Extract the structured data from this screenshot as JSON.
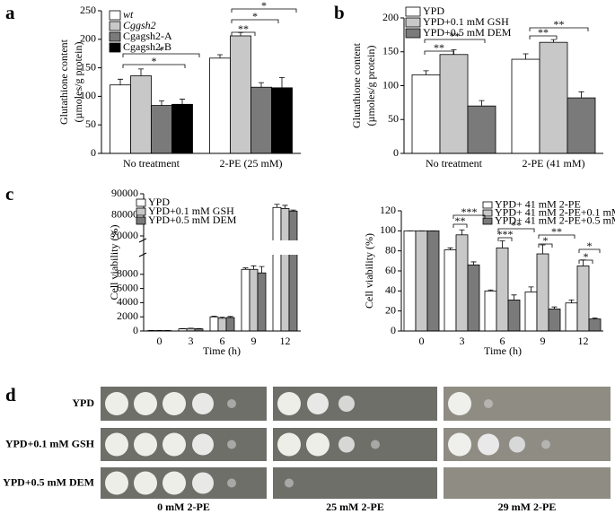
{
  "panels": [
    "a",
    "b",
    "c",
    "d"
  ],
  "chart_data": [
    {
      "type": "bar",
      "categories": [
        "No treatment",
        "2-PE (25 mM)"
      ],
      "series": [
        {
          "name": "wt",
          "color": "#ffffff",
          "values": [
            120,
            167
          ],
          "errors": [
            10,
            6
          ]
        },
        {
          "name": "Cggsh2",
          "color": "#c8c8c8",
          "values": [
            136,
            206
          ],
          "errors": [
            12,
            6
          ]
        },
        {
          "name": "Cgagsh2-A",
          "color": "#7a7a7a",
          "values": [
            84,
            116
          ],
          "errors": [
            8,
            8
          ]
        },
        {
          "name": "Cgagsh2-B",
          "color": "#000000",
          "values": [
            86,
            115
          ],
          "errors": [
            9,
            18
          ]
        }
      ],
      "ylim": [
        0,
        250
      ],
      "yticks": [
        0,
        50,
        100,
        150,
        200,
        250
      ],
      "ylabel": [
        "Glutathione content",
        "(µmoles/g protein)"
      ],
      "annotations": [
        "*",
        "*",
        "**",
        "*",
        "*"
      ],
      "legend": "upper left"
    },
    {
      "type": "bar",
      "categories": [
        "No treatment",
        "2-PE (41 mM)"
      ],
      "series": [
        {
          "name": "YPD",
          "color": "#ffffff",
          "values": [
            116,
            139
          ],
          "errors": [
            6,
            8
          ]
        },
        {
          "name": "YPD+0.1 mM GSH",
          "color": "#c8c8c8",
          "values": [
            146,
            164
          ],
          "errors": [
            7,
            4
          ]
        },
        {
          "name": "YPD+0.5 mM DEM",
          "color": "#7a7a7a",
          "values": [
            70,
            82
          ],
          "errors": [
            8,
            9
          ]
        }
      ],
      "ylim": [
        0,
        200
      ],
      "yticks": [
        0,
        50,
        100,
        150,
        200
      ],
      "ylabel": [
        "Glutathione content",
        "(µmoles/g protein)"
      ],
      "annotations": [
        "**",
        "**",
        "**",
        "**"
      ],
      "legend": "upper left"
    },
    {
      "type": "bar",
      "categories": [
        0,
        3,
        6,
        9,
        12
      ],
      "series": [
        {
          "name": "YPD",
          "color": "#ffffff",
          "values": [
            50,
            300,
            2000,
            8700,
            83500
          ],
          "errors": [
            20,
            50,
            100,
            200,
            1500
          ]
        },
        {
          "name": "YPD+0.1 mM GSH",
          "color": "#c8c8c8",
          "values": [
            50,
            350,
            1800,
            8700,
            83000
          ],
          "errors": [
            20,
            50,
            150,
            500,
            1500
          ]
        },
        {
          "name": "YPD+0.5 mM DEM",
          "color": "#7a7a7a",
          "values": [
            50,
            300,
            1900,
            8200,
            81800
          ],
          "errors": [
            20,
            50,
            150,
            900,
            500
          ]
        }
      ],
      "ylim": [
        0,
        90000
      ],
      "ybreak": [
        10000,
        70000
      ],
      "yticks": [
        0,
        2000,
        4000,
        6000,
        8000,
        70000,
        80000,
        90000
      ],
      "ylabel": [
        "Cell viability (%)"
      ],
      "xlabel": "Time (h)",
      "annotations": [],
      "legend": "upper left"
    },
    {
      "type": "bar",
      "categories": [
        0,
        3,
        6,
        9,
        12
      ],
      "series": [
        {
          "name": "YPD+ 41 mM 2-PE",
          "color": "#ffffff",
          "values": [
            100,
            81,
            40,
            39,
            28
          ],
          "errors": [
            0,
            2,
            1,
            5,
            3
          ]
        },
        {
          "name": "YPD+ 41 mM 2-PE+0.1 mM GSH",
          "color": "#c8c8c8",
          "values": [
            100,
            96,
            83,
            77,
            65
          ],
          "errors": [
            0,
            5,
            7,
            9,
            6
          ]
        },
        {
          "name": "YPD+ 41 mM 2-PE+0.5 mM DEM",
          "color": "#7a7a7a",
          "values": [
            100,
            66,
            31,
            22,
            12
          ],
          "errors": [
            0,
            3,
            5,
            2,
            1
          ]
        }
      ],
      "ylim": [
        0,
        120
      ],
      "yticks": [
        0,
        20,
        40,
        60,
        80,
        100,
        120
      ],
      "ylabel": [
        "Cell viability (%)"
      ],
      "xlabel": "Time (h)",
      "annotations": [
        "**",
        "***",
        "***",
        "**",
        "*",
        "**",
        "*",
        "*"
      ],
      "legend": "upper right"
    }
  ],
  "spot_assay": {
    "rows": [
      "YPD",
      "YPD+0.1 mM GSH",
      "YPD+0.5 mM DEM"
    ],
    "columns": [
      "0 mM 2-PE",
      "25 mM 2-PE",
      "29 mM 2-PE"
    ]
  }
}
